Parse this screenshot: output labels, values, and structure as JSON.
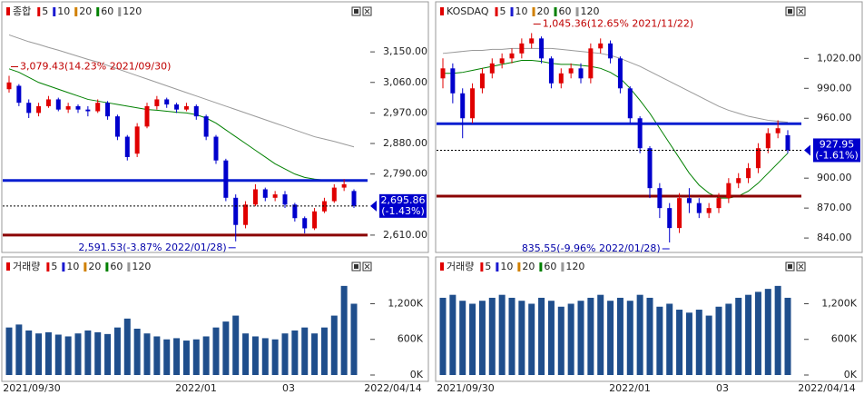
{
  "chart_data": [
    {
      "type": "candlestick",
      "title": "종합",
      "ma_legend": [
        {
          "name": "5",
          "color": "#e00000"
        },
        {
          "name": "10",
          "color": "#1a1ad0"
        },
        {
          "name": "20",
          "color": "#d08000"
        },
        {
          "name": "60",
          "color": "#008000"
        },
        {
          "name": "120",
          "color": "#999999"
        }
      ],
      "open": [
        3040,
        3050,
        3000,
        2970,
        2990,
        3010,
        2980,
        2990,
        2980,
        2975,
        3000,
        2960,
        2900,
        2850,
        2930,
        2990,
        3010,
        2995,
        2980,
        2990,
        2960,
        2900,
        2830,
        2720,
        2640,
        2700,
        2745,
        2720,
        2730,
        2700,
        2660,
        2630,
        2680,
        2710,
        2750,
        2740
      ],
      "high": [
        3079.43,
        3055,
        3010,
        3000,
        3020,
        3015,
        3000,
        2995,
        2990,
        3010,
        3005,
        2965,
        2905,
        2940,
        3000,
        3020,
        3015,
        3000,
        3000,
        2995,
        2965,
        2905,
        2835,
        2730,
        2710,
        2760,
        2750,
        2740,
        2740,
        2705,
        2665,
        2690,
        2720,
        2760,
        2775,
        2745
      ],
      "low": [
        3030,
        2990,
        2955,
        2960,
        2985,
        2975,
        2970,
        2970,
        2960,
        2970,
        2950,
        2890,
        2830,
        2840,
        2925,
        2980,
        2985,
        2970,
        2975,
        2950,
        2890,
        2820,
        2710,
        2591.53,
        2630,
        2695,
        2710,
        2710,
        2690,
        2650,
        2615,
        2625,
        2675,
        2705,
        2740,
        2690
      ],
      "close": [
        3060,
        3000,
        2970,
        2990,
        3010,
        2980,
        2990,
        2980,
        2975,
        3000,
        2960,
        2900,
        2840,
        2930,
        2990,
        3010,
        2995,
        2980,
        2990,
        2960,
        2900,
        2830,
        2720,
        2640,
        2700,
        2745,
        2720,
        2730,
        2700,
        2660,
        2630,
        2680,
        2710,
        2750,
        2760,
        2695.86
      ],
      "ma": [
        {
          "name": "60",
          "color": "#008000",
          "values": [
            3100,
            3090,
            3075,
            3060,
            3050,
            3040,
            3030,
            3020,
            3010,
            3005,
            3000,
            2995,
            2990,
            2985,
            2980,
            2978,
            2975,
            2972,
            2970,
            2965,
            2955,
            2940,
            2920,
            2900,
            2880,
            2860,
            2840,
            2820,
            2805,
            2790,
            2780,
            2775,
            2772,
            2770,
            2772,
            2770
          ]
        },
        {
          "name": "120",
          "color": "#999999",
          "values": [
            3200,
            3190,
            3180,
            3172,
            3163,
            3155,
            3146,
            3137,
            3128,
            3120,
            3110,
            3100,
            3090,
            3080,
            3070,
            3060,
            3050,
            3040,
            3030,
            3020,
            3010,
            3000,
            2990,
            2980,
            2970,
            2960,
            2950,
            2940,
            2930,
            2920,
            2910,
            2900,
            2893,
            2886,
            2878,
            2870
          ]
        }
      ],
      "ylim": [
        2575,
        3244
      ],
      "yticks": [
        {
          "value": 3150,
          "label": "3,150.00"
        },
        {
          "value": 3060,
          "label": "3,060.00"
        },
        {
          "value": 2970,
          "label": "2,970.00"
        },
        {
          "value": 2880,
          "label": "2,880.00"
        },
        {
          "value": 2790,
          "label": "2,790.00"
        },
        {
          "value": 2610,
          "label": "2,610.00"
        }
      ],
      "hlines": [
        {
          "value": 2771,
          "color": "#0a1fd0"
        },
        {
          "value": 2610,
          "color": "#8b0000"
        }
      ],
      "last_label": "2,695.86",
      "change_label": "(-1.43%)",
      "max_label": "3,079.43(14.23% 2021/09/30)",
      "min_label": "2,591.53(-3.87% 2022/01/28)"
    },
    {
      "type": "bar",
      "title": "거래량",
      "color": "#1f4e8c",
      "ma_legend": [
        {
          "name": "5",
          "color": "#e00000"
        },
        {
          "name": "10",
          "color": "#1a1ad0"
        },
        {
          "name": "20",
          "color": "#d08000"
        },
        {
          "name": "60",
          "color": "#008000"
        },
        {
          "name": "120",
          "color": "#999999"
        }
      ],
      "values": [
        800000,
        850000,
        750000,
        700000,
        720000,
        680000,
        650000,
        700000,
        750000,
        720000,
        690000,
        800000,
        950000,
        780000,
        700000,
        650000,
        600000,
        620000,
        580000,
        600000,
        650000,
        800000,
        900000,
        1000000,
        700000,
        650000,
        620000,
        600000,
        700000,
        750000,
        800000,
        700000,
        800000,
        1000000,
        1500000,
        1200000
      ],
      "ylim": [
        0,
        1880000
      ],
      "yticks": [
        {
          "value": 1200000,
          "label": "1,200K"
        },
        {
          "value": 600000,
          "label": "600K"
        },
        {
          "value": 0,
          "label": "0K"
        }
      ],
      "xlabels": [
        "2021/09/30",
        "2022/01",
        "03",
        "2022/04/14"
      ]
    },
    {
      "type": "candlestick",
      "title": "KOSDAQ",
      "ma_legend": [
        {
          "name": "5",
          "color": "#e00000"
        },
        {
          "name": "10",
          "color": "#1a1ad0"
        },
        {
          "name": "20",
          "color": "#d08000"
        },
        {
          "name": "60",
          "color": "#008000"
        },
        {
          "name": "120",
          "color": "#999999"
        }
      ],
      "open": [
        1000,
        1010,
        985,
        960,
        990,
        1005,
        1015,
        1020,
        1025,
        1035,
        1040,
        1020,
        995,
        1005,
        1010,
        1000,
        1030,
        1035,
        1020,
        990,
        960,
        930,
        890,
        870,
        850,
        880,
        875,
        865,
        870,
        880,
        895,
        900,
        910,
        930,
        945,
        943
      ],
      "high": [
        1020,
        1015,
        990,
        995,
        1010,
        1020,
        1025,
        1030,
        1040,
        1045.36,
        1042,
        1022,
        1010,
        1015,
        1015,
        1035,
        1040,
        1038,
        1022,
        992,
        962,
        932,
        895,
        875,
        885,
        890,
        880,
        875,
        885,
        900,
        905,
        915,
        935,
        950,
        958,
        948
      ],
      "low": [
        990,
        975,
        940,
        955,
        985,
        1000,
        1010,
        1015,
        1020,
        1030,
        1015,
        990,
        990,
        1000,
        995,
        995,
        1025,
        1015,
        985,
        955,
        925,
        880,
        860,
        835.55,
        845,
        865,
        860,
        860,
        865,
        875,
        890,
        895,
        905,
        925,
        940,
        925
      ],
      "close": [
        1010,
        985,
        960,
        990,
        1005,
        1015,
        1020,
        1025,
        1035,
        1040,
        1020,
        995,
        1005,
        1010,
        1000,
        1030,
        1035,
        1020,
        990,
        960,
        930,
        890,
        870,
        850,
        880,
        875,
        865,
        870,
        880,
        895,
        900,
        910,
        930,
        945,
        950,
        927.95
      ],
      "ma": [
        {
          "name": "60",
          "color": "#008000",
          "values": [
            1005,
            1005,
            1006,
            1008,
            1010,
            1012,
            1014,
            1016,
            1018,
            1018,
            1017,
            1015,
            1014,
            1014,
            1013,
            1012,
            1010,
            1006,
            1000,
            990,
            978,
            965,
            950,
            935,
            920,
            905,
            893,
            885,
            880,
            880,
            882,
            887,
            895,
            905,
            915,
            925
          ]
        },
        {
          "name": "120",
          "color": "#999999",
          "values": [
            1025,
            1026,
            1027,
            1028,
            1028,
            1029,
            1029,
            1030,
            1030,
            1030,
            1030,
            1030,
            1029,
            1028,
            1027,
            1026,
            1025,
            1023,
            1020,
            1016,
            1012,
            1007,
            1002,
            997,
            992,
            987,
            982,
            977,
            972,
            968,
            965,
            962,
            960,
            958,
            957,
            956
          ]
        }
      ],
      "ylim": [
        831,
        1058.5
      ],
      "yticks": [
        {
          "value": 1020,
          "label": "1,020.00"
        },
        {
          "value": 990,
          "label": "990.00"
        },
        {
          "value": 960,
          "label": "960.00"
        },
        {
          "value": 900,
          "label": "900.00"
        },
        {
          "value": 870,
          "label": "870.00"
        },
        {
          "value": 840,
          "label": "840.00"
        }
      ],
      "hlines": [
        {
          "value": 954.5,
          "color": "#0a1fd0"
        },
        {
          "value": 882,
          "color": "#8b0000"
        }
      ],
      "last_label": "927.95",
      "change_label": "(-1.61%)",
      "max_label": "1,045.36(12.65% 2021/11/22)",
      "min_label": "835.55(-9.96% 2022/01/28)"
    },
    {
      "type": "bar",
      "title": "거래량",
      "color": "#1f4e8c",
      "ma_legend": [
        {
          "name": "5",
          "color": "#e00000"
        },
        {
          "name": "10",
          "color": "#1a1ad0"
        },
        {
          "name": "20",
          "color": "#d08000"
        },
        {
          "name": "60",
          "color": "#008000"
        },
        {
          "name": "120",
          "color": "#999999"
        }
      ],
      "values": [
        1300000,
        1350000,
        1250000,
        1200000,
        1250000,
        1300000,
        1350000,
        1300000,
        1250000,
        1200000,
        1300000,
        1250000,
        1150000,
        1200000,
        1250000,
        1300000,
        1350000,
        1250000,
        1300000,
        1250000,
        1350000,
        1300000,
        1150000,
        1200000,
        1100000,
        1050000,
        1100000,
        1000000,
        1150000,
        1200000,
        1300000,
        1350000,
        1400000,
        1450000,
        1500000,
        1300000
      ],
      "ylim": [
        0,
        1880000
      ],
      "yticks": [
        {
          "value": 1200000,
          "label": "1,200K"
        },
        {
          "value": 600000,
          "label": "600K"
        },
        {
          "value": 0,
          "label": "0K"
        }
      ],
      "xlabels": [
        "2021/09/30",
        "2022/01",
        "03",
        "2022/04/14"
      ]
    }
  ]
}
